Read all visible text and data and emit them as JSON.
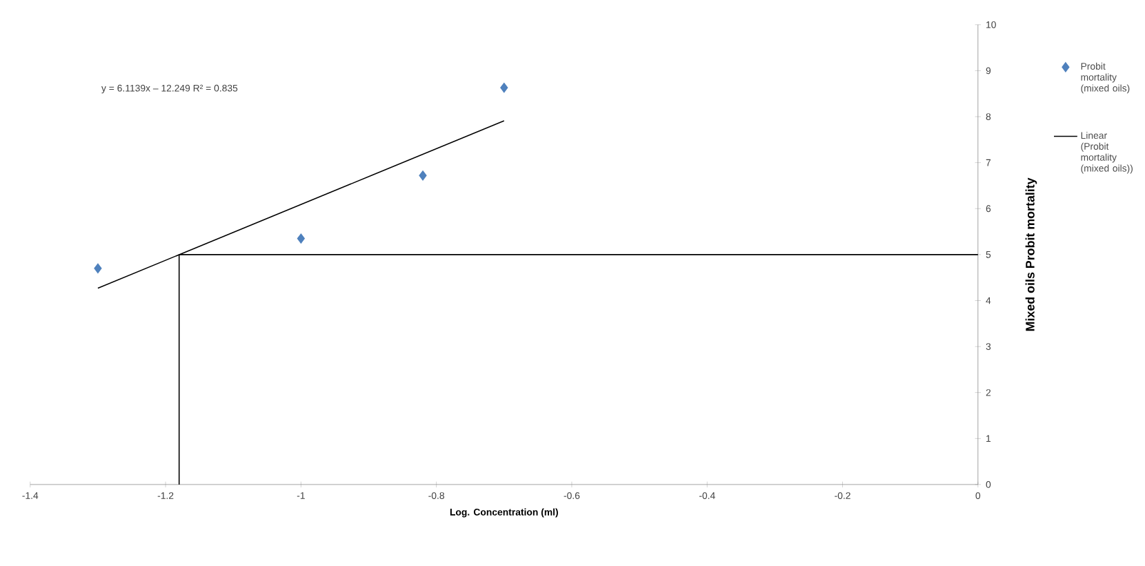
{
  "chart_data": {
    "type": "scatter",
    "xlabel": "Log. Concentration (ml)",
    "ylabel": "Mixed oils Probit mortality",
    "xlim": [
      -1.4,
      0
    ],
    "ylim": [
      0,
      10
    ],
    "xticks": [
      -1.4,
      -1.2,
      -1,
      -0.8,
      -0.6,
      -0.4,
      -0.2,
      0
    ],
    "yticks": [
      0,
      1,
      2,
      3,
      4,
      5,
      6,
      7,
      8,
      9,
      10
    ],
    "legend": "right",
    "grid": false,
    "annotations": [
      "y = 6.1139x – 12.249 R² = 0.835"
    ],
    "series": [
      {
        "name": "Probit mortality (mixed oils)",
        "marker": "diamond",
        "color": "#4f81bd",
        "x": [
          -1.3,
          -1.0,
          -0.82,
          -0.7
        ],
        "values": [
          4.7,
          5.35,
          6.72,
          8.63
        ]
      },
      {
        "name": "Linear (Probit mortality (mixed oils))",
        "type": "line",
        "color": "#000000",
        "x": [
          -1.3,
          -0.7
        ],
        "values": [
          4.27,
          7.91
        ]
      },
      {
        "type": "line",
        "color": "#000000",
        "x": [
          -1.18,
          -1.18,
          0
        ],
        "values": [
          0,
          5,
          5
        ]
      }
    ]
  }
}
